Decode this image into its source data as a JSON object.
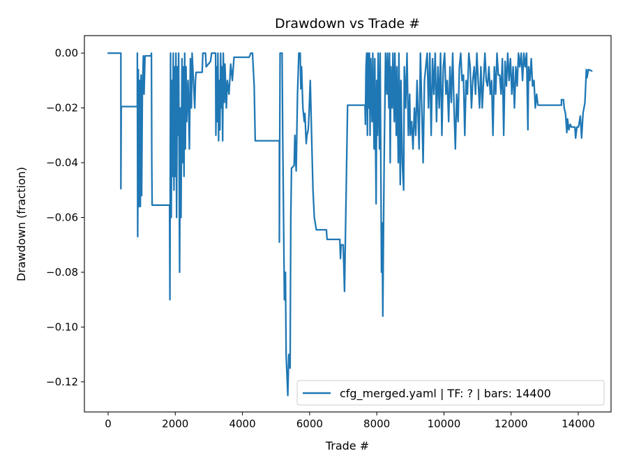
{
  "chart_data": {
    "type": "line",
    "title": "Drawdown vs Trade #",
    "xlabel": "Trade #",
    "ylabel": "Drawdown (fraction)",
    "xlim": [
      -706,
      14976
    ],
    "ylim": [
      -0.131,
      0.0064
    ],
    "xticks": [
      0,
      2000,
      4000,
      6000,
      8000,
      10000,
      12000,
      14000
    ],
    "xtick_labels": [
      "0",
      "2000",
      "4000",
      "6000",
      "8000",
      "10000",
      "12000",
      "14000"
    ],
    "yticks": [
      0,
      -0.02,
      -0.04,
      -0.06,
      -0.08,
      -0.1,
      -0.12
    ],
    "ytick_labels": [
      "0.00",
      "−0.02",
      "−0.04",
      "−0.06",
      "−0.08",
      "−0.10",
      "−0.12"
    ],
    "grid": false,
    "legend_position": "lower-right",
    "series": [
      {
        "name": "cfg_merged.yaml | TF: ? | bars: 14400",
        "color": "#1f77b4",
        "points": [
          [
            0,
            0
          ],
          [
            380,
            0
          ],
          [
            380,
            -0.0495
          ],
          [
            390,
            -0.0195
          ],
          [
            870,
            -0.0195
          ],
          [
            870,
            0
          ],
          [
            880,
            -0.067
          ],
          [
            900,
            -0.006
          ],
          [
            920,
            -0.056
          ],
          [
            940,
            -0.01
          ],
          [
            960,
            -0.056
          ],
          [
            980,
            -0.008
          ],
          [
            1000,
            -0.052
          ],
          [
            1020,
            -0.015
          ],
          [
            1050,
            -0.001
          ],
          [
            1070,
            -0.015
          ],
          [
            1100,
            -0.001
          ],
          [
            1280,
            -0.001
          ],
          [
            1290,
            0
          ],
          [
            1300,
            -0.04
          ],
          [
            1310,
            -0.0555
          ],
          [
            1830,
            -0.0555
          ],
          [
            1840,
            -0.09
          ],
          [
            1860,
            0
          ],
          [
            1880,
            -0.06
          ],
          [
            1900,
            -0.01
          ],
          [
            1920,
            -0.045
          ],
          [
            1940,
            0
          ],
          [
            1960,
            -0.05
          ],
          [
            1980,
            -0.005
          ],
          [
            2000,
            -0.045
          ],
          [
            2020,
            0
          ],
          [
            2040,
            -0.06
          ],
          [
            2060,
            -0.005
          ],
          [
            2080,
            -0.03
          ],
          [
            2100,
            0
          ],
          [
            2130,
            -0.08
          ],
          [
            2150,
            -0.02
          ],
          [
            2170,
            -0.06
          ],
          [
            2200,
            -0.002
          ],
          [
            2220,
            -0.04
          ],
          [
            2240,
            -0.005
          ],
          [
            2260,
            -0.045
          ],
          [
            2280,
            0
          ],
          [
            2300,
            -0.035
          ],
          [
            2320,
            -0.005
          ],
          [
            2340,
            -0.025
          ],
          [
            2380,
            -0.01
          ],
          [
            2420,
            -0.035
          ],
          [
            2450,
            -0.002
          ],
          [
            2480,
            -0.02
          ],
          [
            2500,
            0
          ],
          [
            2540,
            -0.01
          ],
          [
            2580,
            -0.02
          ],
          [
            2600,
            -0.01
          ],
          [
            2620,
            -0.007
          ],
          [
            2800,
            -0.007
          ],
          [
            2820,
            0
          ],
          [
            2900,
            0
          ],
          [
            2920,
            -0.005
          ],
          [
            3050,
            -0.003
          ],
          [
            3080,
            0
          ],
          [
            3200,
            0
          ],
          [
            3210,
            -0.03
          ],
          [
            3230,
            -0.005
          ],
          [
            3250,
            -0.025
          ],
          [
            3270,
            0
          ],
          [
            3290,
            -0.032
          ],
          [
            3310,
            -0.01
          ],
          [
            3330,
            -0.028
          ],
          [
            3350,
            0
          ],
          [
            3370,
            -0.02
          ],
          [
            3390,
            -0.005
          ],
          [
            3410,
            -0.032
          ],
          [
            3430,
            0
          ],
          [
            3460,
            -0.018
          ],
          [
            3480,
            -0.004
          ],
          [
            3520,
            -0.02
          ],
          [
            3550,
            -0.01
          ],
          [
            3600,
            -0.015
          ],
          [
            3650,
            -0.004
          ],
          [
            3700,
            -0.01
          ],
          [
            3750,
            -0.0015
          ],
          [
            4200,
            -0.0015
          ],
          [
            4250,
            0
          ],
          [
            4300,
            0
          ],
          [
            4350,
            -0.012
          ],
          [
            4380,
            -0.032
          ],
          [
            5100,
            -0.032
          ],
          [
            5100,
            -0.069
          ],
          [
            5120,
            0
          ],
          [
            5180,
            0
          ],
          [
            5200,
            -0.03
          ],
          [
            5250,
            -0.09
          ],
          [
            5280,
            -0.08
          ],
          [
            5300,
            -0.11
          ],
          [
            5350,
            -0.125
          ],
          [
            5380,
            -0.11
          ],
          [
            5420,
            -0.115
          ],
          [
            5440,
            -0.06
          ],
          [
            5460,
            -0.042
          ],
          [
            5540,
            -0.041
          ],
          [
            5560,
            -0.03
          ],
          [
            5600,
            -0.043
          ],
          [
            5640,
            -0.015
          ],
          [
            5680,
            0
          ],
          [
            5720,
            0
          ],
          [
            5740,
            -0.013
          ],
          [
            5760,
            -0.005
          ],
          [
            5800,
            -0.02
          ],
          [
            5840,
            -0.025
          ],
          [
            5860,
            -0.022
          ],
          [
            5900,
            -0.033
          ],
          [
            5920,
            -0.03
          ],
          [
            5960,
            -0.028
          ],
          [
            5980,
            -0.023
          ],
          [
            6020,
            -0.01
          ],
          [
            6060,
            -0.03
          ],
          [
            6100,
            -0.05
          ],
          [
            6140,
            -0.06
          ],
          [
            6200,
            -0.0645
          ],
          [
            6500,
            -0.0645
          ],
          [
            6520,
            -0.068
          ],
          [
            6900,
            -0.068
          ],
          [
            6920,
            -0.075
          ],
          [
            6940,
            -0.07
          ],
          [
            7000,
            -0.07
          ],
          [
            7040,
            -0.087
          ],
          [
            7130,
            -0.019
          ],
          [
            7650,
            -0.019
          ],
          [
            7660,
            -0.026
          ],
          [
            7680,
            -0.005
          ],
          [
            7700,
            0
          ],
          [
            7720,
            -0.03
          ],
          [
            7740,
            0
          ],
          [
            7760,
            -0.02
          ],
          [
            7780,
            0
          ],
          [
            7800,
            -0.03
          ],
          [
            7820,
            -0.002
          ],
          [
            7860,
            -0.025
          ],
          [
            7880,
            0
          ],
          [
            7920,
            -0.035
          ],
          [
            7940,
            -0.002
          ],
          [
            7980,
            -0.055
          ],
          [
            8000,
            -0.01
          ],
          [
            8020,
            -0.03
          ],
          [
            8040,
            0
          ],
          [
            8080,
            -0.035
          ],
          [
            8100,
            0
          ],
          [
            8140,
            -0.08
          ],
          [
            8160,
            -0.062
          ],
          [
            8180,
            -0.096
          ],
          [
            8200,
            -0.065
          ],
          [
            8220,
            -0.04
          ],
          [
            8240,
            -0.02
          ],
          [
            8260,
            0
          ],
          [
            8300,
            -0.015
          ],
          [
            8320,
            0
          ],
          [
            8360,
            -0.02
          ],
          [
            8380,
            0
          ],
          [
            8400,
            -0.04
          ],
          [
            8420,
            -0.005
          ],
          [
            8460,
            -0.02
          ],
          [
            8480,
            0
          ],
          [
            8520,
            -0.025
          ],
          [
            8540,
            0
          ],
          [
            8580,
            -0.03
          ],
          [
            8600,
            -0.005
          ],
          [
            8640,
            -0.04
          ],
          [
            8660,
            0
          ],
          [
            8700,
            -0.048
          ],
          [
            8720,
            -0.01
          ],
          [
            8760,
            -0.04
          ],
          [
            8800,
            -0.05
          ],
          [
            8820,
            -0.005
          ],
          [
            8860,
            -0.02
          ],
          [
            8900,
            0
          ],
          [
            8940,
            -0.03
          ],
          [
            8980,
            -0.015
          ],
          [
            9000,
            -0.03
          ],
          [
            9040,
            -0.025
          ],
          [
            9080,
            -0.035
          ],
          [
            9120,
            -0.02
          ],
          [
            9160,
            -0.03
          ],
          [
            9200,
            -0.01
          ],
          [
            9260,
            -0.035
          ],
          [
            9300,
            0
          ],
          [
            9340,
            -0.02
          ],
          [
            9380,
            -0.04
          ],
          [
            9420,
            -0.01
          ],
          [
            9460,
            -0.005
          ],
          [
            9500,
            0
          ],
          [
            9540,
            -0.02
          ],
          [
            9580,
            0
          ],
          [
            9620,
            -0.03
          ],
          [
            9660,
            -0.002
          ],
          [
            9700,
            -0.015
          ],
          [
            9740,
            0
          ],
          [
            9780,
            -0.025
          ],
          [
            9820,
            -0.005
          ],
          [
            9860,
            -0.02
          ],
          [
            9900,
            0
          ],
          [
            9940,
            -0.03
          ],
          [
            9980,
            -0.005
          ],
          [
            10020,
            0
          ],
          [
            10060,
            -0.015
          ],
          [
            10100,
            -0.01
          ],
          [
            10140,
            -0.025
          ],
          [
            10180,
            -0.005
          ],
          [
            10220,
            -0.018
          ],
          [
            10260,
            0
          ],
          [
            10300,
            -0.02
          ],
          [
            10340,
            -0.035
          ],
          [
            10380,
            -0.015
          ],
          [
            10420,
            -0.025
          ],
          [
            10460,
            -0.005
          ],
          [
            10500,
            0
          ],
          [
            10540,
            -0.01
          ],
          [
            10580,
            -0.008
          ],
          [
            10620,
            -0.03
          ],
          [
            10660,
            -0.01
          ],
          [
            10700,
            -0.015
          ],
          [
            10740,
            0
          ],
          [
            10780,
            -0.005
          ],
          [
            10820,
            -0.02
          ],
          [
            10860,
            -0.01
          ],
          [
            10900,
            -0.005
          ],
          [
            10940,
            -0.015
          ],
          [
            10980,
            0
          ],
          [
            11020,
            -0.01
          ],
          [
            11060,
            -0.02
          ],
          [
            11100,
            -0.005
          ],
          [
            11140,
            -0.02
          ],
          [
            11180,
            -0.01
          ],
          [
            11220,
            0
          ],
          [
            11260,
            -0.01
          ],
          [
            11300,
            -0.012
          ],
          [
            11340,
            -0.005
          ],
          [
            11380,
            -0.015
          ],
          [
            11420,
            -0.01
          ],
          [
            11460,
            -0.03
          ],
          [
            11500,
            -0.005
          ],
          [
            11540,
            -0.015
          ],
          [
            11580,
            0
          ],
          [
            11620,
            -0.008
          ],
          [
            11660,
            -0.008
          ],
          [
            11700,
            -0.015
          ],
          [
            11740,
            -0.002
          ],
          [
            11780,
            -0.03
          ],
          [
            11820,
            -0.003
          ],
          [
            11860,
            -0.012
          ],
          [
            11900,
            0
          ],
          [
            11940,
            -0.01
          ],
          [
            11980,
            -0.002
          ],
          [
            12020,
            -0.015
          ],
          [
            12060,
            -0.005
          ],
          [
            12100,
            -0.02
          ],
          [
            12140,
            -0.005
          ],
          [
            12180,
            -0.012
          ],
          [
            12220,
            0
          ],
          [
            12260,
            -0.005
          ],
          [
            12300,
            0
          ],
          [
            12340,
            -0.01
          ],
          [
            12380,
            0
          ],
          [
            12420,
            -0.005
          ],
          [
            12460,
            0
          ],
          [
            12500,
            -0.028
          ],
          [
            12520,
            -0.005
          ],
          [
            12560,
            -0.01
          ],
          [
            12600,
            -0.002
          ],
          [
            12640,
            -0.012
          ],
          [
            12680,
            -0.01
          ],
          [
            12720,
            -0.02
          ],
          [
            12760,
            -0.015
          ],
          [
            12800,
            -0.019
          ],
          [
            13500,
            -0.019
          ],
          [
            13500,
            -0.017
          ],
          [
            13560,
            -0.017
          ],
          [
            13580,
            -0.02
          ],
          [
            13620,
            -0.022
          ],
          [
            13660,
            -0.029
          ],
          [
            13680,
            -0.024
          ],
          [
            13720,
            -0.028
          ],
          [
            13760,
            -0.026
          ],
          [
            13800,
            -0.027
          ],
          [
            13900,
            -0.027
          ],
          [
            13920,
            -0.031
          ],
          [
            13960,
            -0.027
          ],
          [
            14000,
            -0.027
          ],
          [
            14020,
            -0.026
          ],
          [
            14060,
            -0.023
          ],
          [
            14100,
            -0.031
          ],
          [
            14140,
            -0.022
          ],
          [
            14200,
            -0.018
          ],
          [
            14240,
            -0.006
          ],
          [
            14260,
            -0.009
          ],
          [
            14300,
            -0.006
          ],
          [
            14400,
            -0.0065
          ]
        ]
      }
    ]
  }
}
